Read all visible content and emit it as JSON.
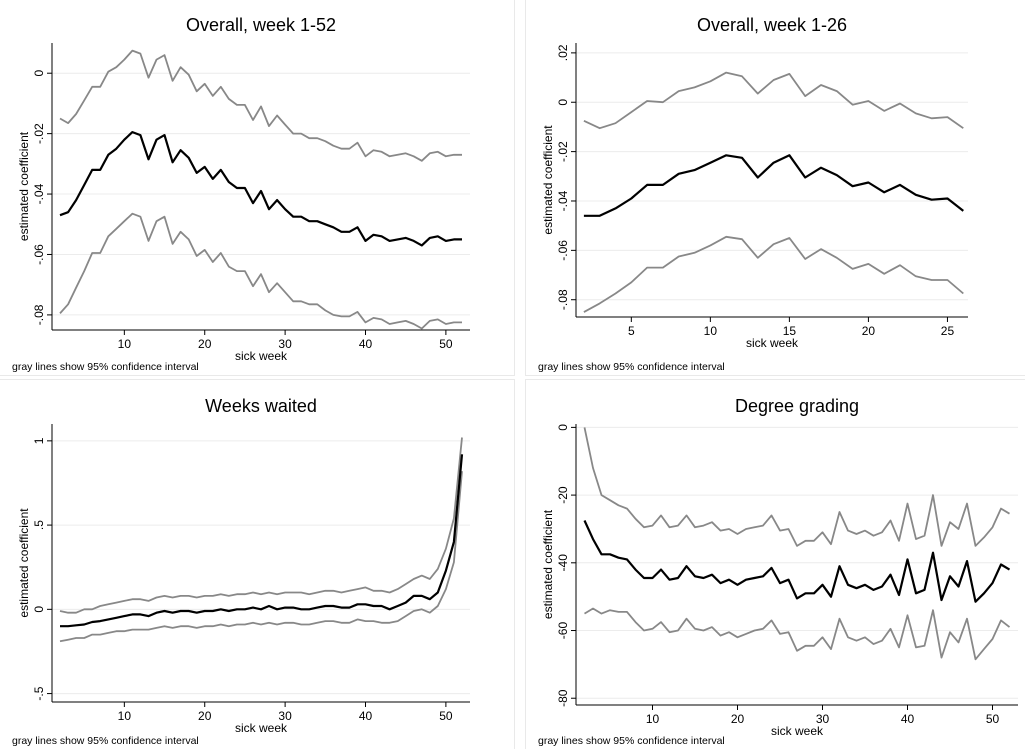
{
  "chart_data": [
    {
      "type": "line",
      "title": "Overall, week 1-52",
      "xlabel": "sick week",
      "ylabel": "estimated coefficient",
      "note": "gray lines show 95% confidence interval",
      "xlim": [
        1,
        53
      ],
      "ylim": [
        -0.085,
        0.01
      ],
      "xticks": [
        10,
        20,
        30,
        40,
        50
      ],
      "yticks": [
        -0.08,
        -0.06,
        -0.04,
        -0.02,
        0
      ],
      "ytick_labels": [
        "-.08",
        "-.06",
        "-.04",
        "-.02",
        "0"
      ],
      "grid": true,
      "x": [
        2,
        3,
        4,
        5,
        6,
        7,
        8,
        9,
        10,
        11,
        12,
        13,
        14,
        15,
        16,
        17,
        18,
        19,
        20,
        21,
        22,
        23,
        24,
        25,
        26,
        27,
        28,
        29,
        30,
        31,
        32,
        33,
        34,
        35,
        36,
        37,
        38,
        39,
        40,
        41,
        42,
        43,
        44,
        45,
        46,
        47,
        48,
        49,
        50,
        51,
        52
      ],
      "series": [
        {
          "role": "estimate",
          "color": "#000000",
          "values": [
            -0.047,
            -0.046,
            -0.042,
            -0.037,
            -0.032,
            -0.032,
            -0.027,
            -0.025,
            -0.022,
            -0.0195,
            -0.0205,
            -0.0285,
            -0.022,
            -0.0205,
            -0.0295,
            -0.0255,
            -0.028,
            -0.033,
            -0.031,
            -0.035,
            -0.032,
            -0.036,
            -0.038,
            -0.038,
            -0.043,
            -0.039,
            -0.045,
            -0.042,
            -0.045,
            -0.0475,
            -0.0475,
            -0.049,
            -0.049,
            -0.05,
            -0.051,
            -0.0525,
            -0.0525,
            -0.051,
            -0.0555,
            -0.0535,
            -0.054,
            -0.0555,
            -0.055,
            -0.0545,
            -0.0555,
            -0.057,
            -0.0545,
            -0.054,
            -0.0555,
            -0.055,
            -0.055
          ]
        },
        {
          "role": "upper 95% CI",
          "color": "#888888",
          "values": [
            -0.015,
            -0.0165,
            -0.0135,
            -0.009,
            -0.0045,
            -0.0045,
            0.0005,
            0.002,
            0.0045,
            0.0075,
            0.0065,
            -0.0015,
            0.0045,
            0.006,
            -0.0025,
            0.002,
            -0.0005,
            -0.006,
            -0.0035,
            -0.0075,
            -0.0045,
            -0.0085,
            -0.0105,
            -0.0105,
            -0.0155,
            -0.011,
            -0.0175,
            -0.014,
            -0.017,
            -0.02,
            -0.02,
            -0.0215,
            -0.0215,
            -0.0225,
            -0.024,
            -0.025,
            -0.025,
            -0.023,
            -0.0275,
            -0.0255,
            -0.026,
            -0.0275,
            -0.027,
            -0.0265,
            -0.0275,
            -0.029,
            -0.0265,
            -0.026,
            -0.0275,
            -0.027,
            -0.027
          ]
        },
        {
          "role": "lower 95% CI",
          "color": "#888888",
          "values": [
            -0.0795,
            -0.0765,
            -0.071,
            -0.0655,
            -0.0595,
            -0.0595,
            -0.054,
            -0.0515,
            -0.049,
            -0.0465,
            -0.0475,
            -0.0555,
            -0.049,
            -0.0475,
            -0.0565,
            -0.0525,
            -0.055,
            -0.0605,
            -0.0585,
            -0.0625,
            -0.0595,
            -0.064,
            -0.0655,
            -0.0655,
            -0.0705,
            -0.0665,
            -0.0725,
            -0.0695,
            -0.0725,
            -0.0755,
            -0.0755,
            -0.0765,
            -0.0765,
            -0.0785,
            -0.08,
            -0.0805,
            -0.0805,
            -0.079,
            -0.0825,
            -0.081,
            -0.0815,
            -0.083,
            -0.0825,
            -0.082,
            -0.083,
            -0.0845,
            -0.082,
            -0.0815,
            -0.083,
            -0.0825,
            -0.0825
          ]
        }
      ]
    },
    {
      "type": "line",
      "title": "Overall, week 1-26",
      "xlabel": "sick week",
      "ylabel": "estimated coefficient",
      "note": "gray lines show 95% confidence interval",
      "xlim": [
        1.5,
        26.3
      ],
      "ylim": [
        -0.087,
        0.024
      ],
      "xticks": [
        5,
        10,
        15,
        20,
        25
      ],
      "yticks": [
        -0.08,
        -0.06,
        -0.04,
        -0.02,
        0,
        0.02
      ],
      "ytick_labels": [
        "-.08",
        "-.06",
        "-.04",
        "-.02",
        "0",
        ".02"
      ],
      "grid": true,
      "x": [
        2,
        3,
        4,
        5,
        6,
        7,
        8,
        9,
        10,
        11,
        12,
        13,
        14,
        15,
        16,
        17,
        18,
        19,
        20,
        21,
        22,
        23,
        24,
        25,
        26
      ],
      "series": [
        {
          "role": "estimate",
          "color": "#000000",
          "values": [
            -0.046,
            -0.046,
            -0.043,
            -0.039,
            -0.0335,
            -0.0335,
            -0.029,
            -0.0275,
            -0.0245,
            -0.0215,
            -0.0225,
            -0.0305,
            -0.0245,
            -0.0215,
            -0.0305,
            -0.0265,
            -0.0295,
            -0.034,
            -0.0325,
            -0.0365,
            -0.0335,
            -0.0375,
            -0.0395,
            -0.039,
            -0.044
          ]
        },
        {
          "role": "upper 95% CI",
          "color": "#888888",
          "values": [
            -0.0075,
            -0.0105,
            -0.0085,
            -0.004,
            0.0005,
            0.0,
            0.0045,
            0.006,
            0.0085,
            0.012,
            0.0105,
            0.0035,
            0.009,
            0.0115,
            0.0025,
            0.007,
            0.0045,
            -0.001,
            0.0005,
            -0.0035,
            -0.0005,
            -0.0045,
            -0.0065,
            -0.006,
            -0.0105
          ]
        },
        {
          "role": "lower 95% CI",
          "color": "#888888",
          "values": [
            -0.085,
            -0.0815,
            -0.0775,
            -0.073,
            -0.067,
            -0.067,
            -0.0625,
            -0.061,
            -0.058,
            -0.0545,
            -0.0555,
            -0.063,
            -0.0575,
            -0.055,
            -0.0635,
            -0.0595,
            -0.063,
            -0.0675,
            -0.0655,
            -0.0695,
            -0.066,
            -0.0705,
            -0.072,
            -0.072,
            -0.0775
          ]
        }
      ]
    },
    {
      "type": "line",
      "title": "Weeks waited",
      "xlabel": "sick week",
      "ylabel": "estimated coefficient",
      "note": "gray lines show 95% confidence interval",
      "xlim": [
        1,
        53
      ],
      "ylim": [
        -0.55,
        1.1
      ],
      "xticks": [
        10,
        20,
        30,
        40,
        50
      ],
      "yticks": [
        -0.5,
        0,
        0.5,
        1
      ],
      "ytick_labels": [
        "-.5",
        "0",
        ".5",
        "1"
      ],
      "grid": true,
      "x": [
        2,
        3,
        4,
        5,
        6,
        7,
        8,
        9,
        10,
        11,
        12,
        13,
        14,
        15,
        16,
        17,
        18,
        19,
        20,
        21,
        22,
        23,
        24,
        25,
        26,
        27,
        28,
        29,
        30,
        31,
        32,
        33,
        34,
        35,
        36,
        37,
        38,
        39,
        40,
        41,
        42,
        43,
        44,
        45,
        46,
        47,
        48,
        49,
        50,
        51,
        52
      ],
      "series": [
        {
          "role": "estimate",
          "color": "#000000",
          "values": [
            -0.1,
            -0.1,
            -0.095,
            -0.09,
            -0.075,
            -0.07,
            -0.06,
            -0.05,
            -0.04,
            -0.03,
            -0.03,
            -0.04,
            -0.02,
            -0.01,
            -0.02,
            -0.01,
            -0.01,
            -0.02,
            -0.01,
            -0.01,
            0.0,
            -0.01,
            0.0,
            0.0,
            0.01,
            0.0,
            0.02,
            0.0,
            0.01,
            0.01,
            0.0,
            0.0,
            0.01,
            0.02,
            0.02,
            0.01,
            0.01,
            0.03,
            0.03,
            0.02,
            0.02,
            0.0,
            0.02,
            0.04,
            0.08,
            0.08,
            0.06,
            0.1,
            0.23,
            0.4,
            0.92
          ]
        },
        {
          "role": "upper 95% CI",
          "color": "#888888",
          "values": [
            -0.01,
            -0.02,
            -0.02,
            0.0,
            0.0,
            0.02,
            0.03,
            0.04,
            0.05,
            0.06,
            0.06,
            0.05,
            0.07,
            0.08,
            0.07,
            0.08,
            0.08,
            0.07,
            0.08,
            0.08,
            0.09,
            0.08,
            0.09,
            0.09,
            0.1,
            0.09,
            0.1,
            0.09,
            0.1,
            0.1,
            0.1,
            0.09,
            0.1,
            0.11,
            0.11,
            0.1,
            0.11,
            0.12,
            0.13,
            0.11,
            0.11,
            0.1,
            0.12,
            0.15,
            0.18,
            0.2,
            0.18,
            0.24,
            0.36,
            0.54,
            1.02
          ]
        },
        {
          "role": "lower 95% CI",
          "color": "#888888",
          "values": [
            -0.19,
            -0.18,
            -0.17,
            -0.17,
            -0.15,
            -0.15,
            -0.14,
            -0.13,
            -0.13,
            -0.12,
            -0.12,
            -0.12,
            -0.11,
            -0.1,
            -0.11,
            -0.1,
            -0.1,
            -0.11,
            -0.1,
            -0.1,
            -0.09,
            -0.1,
            -0.09,
            -0.09,
            -0.08,
            -0.09,
            -0.08,
            -0.09,
            -0.08,
            -0.08,
            -0.09,
            -0.09,
            -0.08,
            -0.07,
            -0.07,
            -0.08,
            -0.08,
            -0.06,
            -0.07,
            -0.07,
            -0.08,
            -0.08,
            -0.07,
            -0.04,
            -0.01,
            0.0,
            -0.02,
            0.02,
            0.12,
            0.28,
            0.82
          ]
        }
      ]
    },
    {
      "type": "line",
      "title": "Degree grading",
      "xlabel": "sick week",
      "ylabel": "estimated coefficient",
      "note": "gray lines show 95% confidence interval",
      "xlim": [
        1,
        53
      ],
      "ylim": [
        -82,
        1
      ],
      "xticks": [
        10,
        20,
        30,
        40,
        50
      ],
      "yticks": [
        -80,
        -60,
        -40,
        -20,
        0
      ],
      "ytick_labels": [
        "-80",
        "-60",
        "-40",
        "-20",
        "0"
      ],
      "grid": true,
      "x": [
        2,
        3,
        4,
        5,
        6,
        7,
        8,
        9,
        10,
        11,
        12,
        13,
        14,
        15,
        16,
        17,
        18,
        19,
        20,
        21,
        22,
        23,
        24,
        25,
        26,
        27,
        28,
        29,
        30,
        31,
        32,
        33,
        34,
        35,
        36,
        37,
        38,
        39,
        40,
        41,
        42,
        43,
        44,
        45,
        46,
        47,
        48,
        49,
        50,
        51,
        52
      ],
      "series": [
        {
          "role": "estimate",
          "color": "#000000",
          "values": [
            -27.5,
            -33,
            -37.5,
            -37.5,
            -38.5,
            -39,
            -42,
            -44.5,
            -44.5,
            -42,
            -45,
            -44.5,
            -41,
            -44,
            -44.5,
            -43.5,
            -46,
            -45,
            -46.5,
            -45,
            -44.5,
            -44,
            -41.5,
            -46,
            -45,
            -50.5,
            -49,
            -49,
            -46.5,
            -50,
            -41,
            -46.5,
            -47.5,
            -46.5,
            -48,
            -47,
            -43.5,
            -49.5,
            -39,
            -49,
            -48,
            -37,
            -51,
            -44,
            -47,
            -39.5,
            -51.5,
            -49,
            -46,
            -40.5,
            -42
          ]
        },
        {
          "role": "upper 95% CI",
          "color": "#888888",
          "values": [
            0,
            -12,
            -20,
            -21.5,
            -23,
            -24,
            -27,
            -29.5,
            -29,
            -26,
            -29.5,
            -29,
            -26,
            -29.5,
            -29,
            -28,
            -30.5,
            -30,
            -31.5,
            -30,
            -29.5,
            -29,
            -26,
            -30.5,
            -30,
            -35,
            -33.5,
            -33.5,
            -31,
            -34.5,
            -25,
            -30.5,
            -31.5,
            -30.5,
            -32,
            -31,
            -27.5,
            -33.5,
            -22.5,
            -33,
            -32,
            -20,
            -35,
            -28,
            -30,
            -22.5,
            -35,
            -32.5,
            -29.5,
            -24,
            -25.5
          ]
        },
        {
          "role": "lower 95% CI",
          "color": "#888888",
          "values": [
            -55,
            -53.5,
            -55,
            -54,
            -54.5,
            -54.5,
            -57.5,
            -60,
            -59.5,
            -57.5,
            -60.5,
            -60,
            -56.5,
            -59.5,
            -60,
            -59,
            -61.5,
            -60.5,
            -62,
            -61,
            -60,
            -59.5,
            -57,
            -61,
            -60.5,
            -66,
            -64.5,
            -64.5,
            -62,
            -65.5,
            -56.5,
            -62,
            -63,
            -62,
            -64,
            -63,
            -59.5,
            -65,
            -55.5,
            -65,
            -64.5,
            -54,
            -68,
            -60.5,
            -63.5,
            -56.5,
            -68.5,
            -65.5,
            -62.5,
            -57,
            -59
          ]
        }
      ]
    }
  ]
}
